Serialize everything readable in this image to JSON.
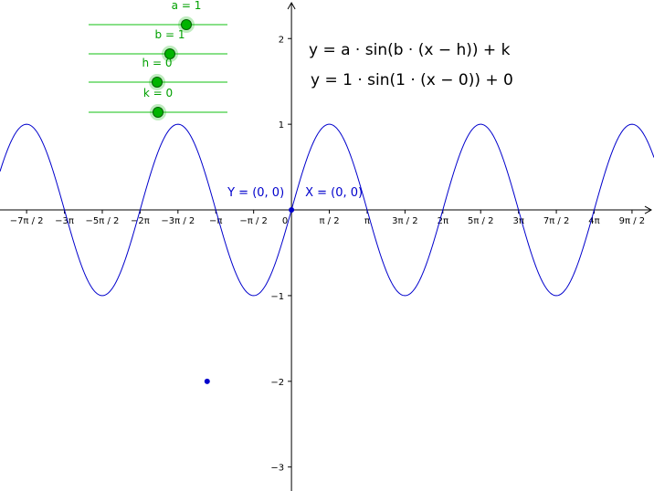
{
  "sliders": [
    {
      "name": "a",
      "label": "a = 1",
      "value": 1,
      "min": -5,
      "max": 5
    },
    {
      "name": "b",
      "label": "b = 1",
      "value": 1,
      "min": -5,
      "max": 5
    },
    {
      "name": "h",
      "label": "h = 0",
      "value": 0,
      "min": -5,
      "max": 5
    },
    {
      "name": "k",
      "label": "k = 0",
      "value": 0,
      "min": -5,
      "max": 5
    }
  ],
  "formulas": {
    "general": "y = a · sin(b · (x − h)) + k",
    "specific": "y = 1 · sin(1 · (x − 0)) + 0"
  },
  "points": {
    "x_label": "X = (0, 0)",
    "y_label": "Y = (0, 0)"
  },
  "colors": {
    "curve": "#0000cc",
    "slider_line": "#88e088",
    "slider_knob": "#00b400",
    "slider_text": "#00a000",
    "point": "#0000cc"
  },
  "chart_data": {
    "type": "line",
    "function": "sin",
    "series": [
      {
        "a": 1,
        "b": 1,
        "h": 0,
        "k": 0
      }
    ],
    "x_tick_labels": [
      "−7π / 2",
      "−3π",
      "−5π / 2",
      "−2π",
      "−3π / 2",
      "−π",
      "−π / 2",
      "0",
      "π / 2",
      "π",
      "3π / 2",
      "2π",
      "5π / 2",
      "3π",
      "7π / 2",
      "4π",
      "9π / 2"
    ],
    "x_tick_values": [
      -10.9956,
      -9.4248,
      -7.854,
      -6.2832,
      -4.7124,
      -3.1416,
      -1.5708,
      0,
      1.5708,
      3.1416,
      4.7124,
      6.2832,
      7.854,
      9.4248,
      10.9956,
      12.5664,
      14.1372
    ],
    "y_tick_labels": [
      "2",
      "1",
      "−1",
      "−2",
      "−3"
    ],
    "y_tick_values": [
      2,
      1,
      -1,
      -2,
      -3
    ],
    "xlim": [
      -12.1,
      15.05
    ],
    "ylim": [
      -3.28,
      2.45
    ],
    "extra_points": [
      {
        "x": -3.5,
        "y": -2
      }
    ],
    "grid": false
  }
}
